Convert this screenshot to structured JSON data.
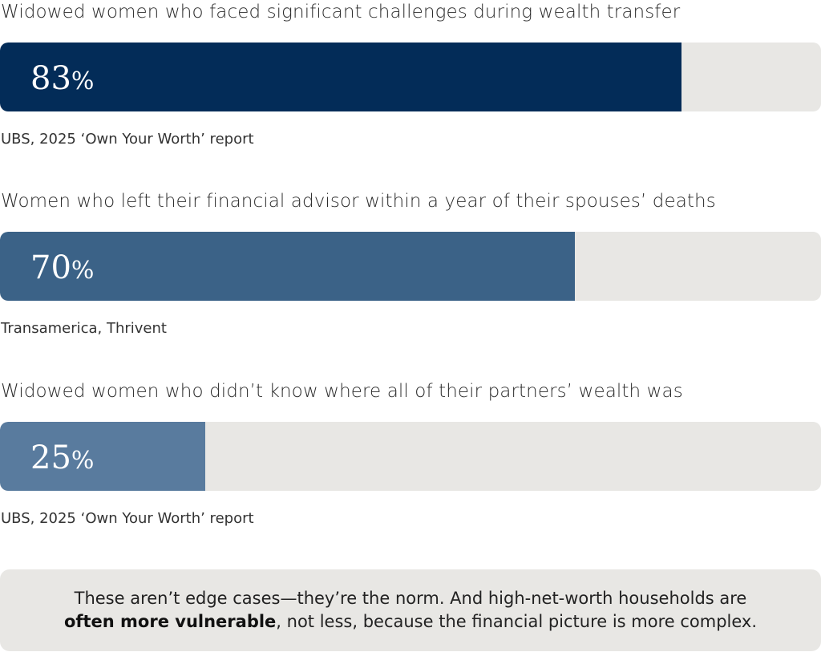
{
  "chart_data": {
    "type": "bar",
    "orientation": "horizontal",
    "xlim": [
      0,
      100
    ],
    "unit": "%",
    "bars": [
      {
        "label": "Widowed women who faced significant challenges during wealth transfer",
        "value": 83,
        "value_number": "83",
        "value_unit": "%",
        "source": "UBS, 2025 ‘Own Your Worth’ report",
        "color": "#032c58"
      },
      {
        "label": "Women who left their financial advisor within a year of their spouses’ deaths",
        "value": 70,
        "value_number": "70",
        "value_unit": "%",
        "source": "Transamerica, Thrivent",
        "color": "#3b6287"
      },
      {
        "label": "Widowed women who didn’t know where all of their partners’ wealth was",
        "value": 25,
        "value_number": "25",
        "value_unit": "%",
        "source": "UBS, 2025 ‘Own Your Worth’ report",
        "color": "#597b9e"
      }
    ],
    "track_color": "#e8e7e4"
  },
  "note": {
    "line1": "These aren’t edge cases—they’re the norm. And high-net-worth households are",
    "emphasis": "often more vulnerable",
    "line2_rest": ", not less, because the financial picture is more complex."
  }
}
